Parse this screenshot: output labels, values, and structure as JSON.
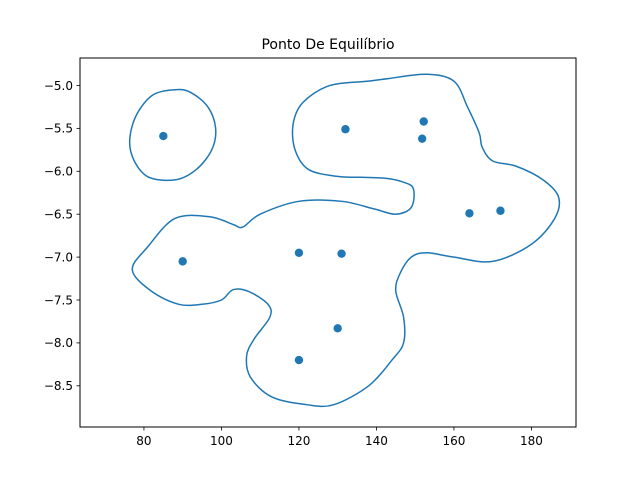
{
  "chart_data": {
    "type": "scatter",
    "title": "Ponto De Equilíbrio",
    "xlabel": "",
    "ylabel": "",
    "xlim": [
      63.5,
      191.5
    ],
    "ylim": [
      -8.98,
      -4.68
    ],
    "xticks": [
      80,
      100,
      120,
      140,
      160,
      180
    ],
    "yticks": [
      -5.0,
      -5.5,
      -6.0,
      -6.5,
      -7.0,
      -7.5,
      -8.0,
      -8.5
    ],
    "xtick_labels": [
      "80",
      "100",
      "120",
      "140",
      "160",
      "180"
    ],
    "ytick_labels": [
      "−5.0",
      "−5.5",
      "−6.0",
      "−6.5",
      "−7.0",
      "−7.5",
      "−8.0",
      "−8.5"
    ],
    "grid": false,
    "color": "#1f77b4",
    "points": [
      {
        "x": 85,
        "y": -5.59
      },
      {
        "x": 132,
        "y": -5.51
      },
      {
        "x": 152.2,
        "y": -5.42
      },
      {
        "x": 151.8,
        "y": -5.62
      },
      {
        "x": 164,
        "y": -6.49
      },
      {
        "x": 172,
        "y": -6.46
      },
      {
        "x": 90,
        "y": -7.05
      },
      {
        "x": 120,
        "y": -6.95
      },
      {
        "x": 131,
        "y": -6.96
      },
      {
        "x": 130,
        "y": -7.83
      },
      {
        "x": 120,
        "y": -8.2
      }
    ],
    "contours": [
      {
        "closed": true,
        "path": [
          [
            88,
            -5.05
          ],
          [
            92,
            -5.08
          ],
          [
            96.5,
            -5.25
          ],
          [
            98.5,
            -5.5
          ],
          [
            97.5,
            -5.75
          ],
          [
            93.5,
            -5.98
          ],
          [
            88,
            -6.1
          ],
          [
            80.5,
            -6.05
          ],
          [
            76.5,
            -5.75
          ],
          [
            77.5,
            -5.4
          ],
          [
            82,
            -5.12
          ]
        ]
      },
      {
        "closed": true,
        "path": [
          [
            153,
            -4.87
          ],
          [
            160,
            -4.95
          ],
          [
            163.5,
            -5.25
          ],
          [
            166.5,
            -5.55
          ],
          [
            167.3,
            -5.72
          ],
          [
            170,
            -5.88
          ],
          [
            176,
            -5.94
          ],
          [
            183,
            -6.1
          ],
          [
            187,
            -6.3
          ],
          [
            186,
            -6.55
          ],
          [
            180,
            -6.85
          ],
          [
            170,
            -7.05
          ],
          [
            160,
            -7.0
          ],
          [
            153,
            -6.95
          ],
          [
            149,
            -7.0
          ],
          [
            146,
            -7.2
          ],
          [
            145,
            -7.4
          ],
          [
            147,
            -7.7
          ],
          [
            147,
            -8.0
          ],
          [
            144,
            -8.2
          ],
          [
            138,
            -8.5
          ],
          [
            129,
            -8.72
          ],
          [
            122,
            -8.72
          ],
          [
            113,
            -8.63
          ],
          [
            107.5,
            -8.4
          ],
          [
            106.5,
            -8.15
          ],
          [
            108.5,
            -7.95
          ],
          [
            112.5,
            -7.7
          ],
          [
            112,
            -7.55
          ],
          [
            107,
            -7.4
          ],
          [
            103,
            -7.38
          ],
          [
            100,
            -7.5
          ],
          [
            95,
            -7.55
          ],
          [
            89,
            -7.55
          ],
          [
            82,
            -7.4
          ],
          [
            77,
            -7.15
          ],
          [
            81,
            -6.88
          ],
          [
            88,
            -6.55
          ],
          [
            97,
            -6.53
          ],
          [
            103,
            -6.62
          ],
          [
            105.5,
            -6.65
          ],
          [
            110,
            -6.5
          ],
          [
            120,
            -6.35
          ],
          [
            131,
            -6.35
          ],
          [
            139.5,
            -6.44
          ],
          [
            145,
            -6.5
          ],
          [
            149,
            -6.42
          ],
          [
            149.5,
            -6.2
          ],
          [
            146.5,
            -6.12
          ],
          [
            142,
            -6.08
          ],
          [
            136,
            -6.07
          ],
          [
            130,
            -6.06
          ],
          [
            122.5,
            -5.98
          ],
          [
            119,
            -5.75
          ],
          [
            118.5,
            -5.45
          ],
          [
            121,
            -5.2
          ],
          [
            128,
            -5.0
          ],
          [
            138,
            -4.95
          ],
          [
            143,
            -4.92
          ]
        ]
      }
    ]
  }
}
